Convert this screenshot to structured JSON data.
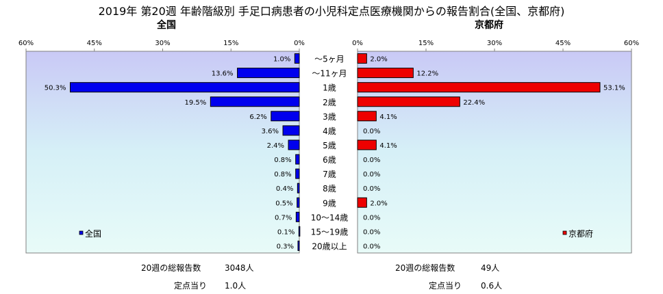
{
  "title": "2019年 第20週 年齢階級別 手足口病患者の小児科定点医療機関からの報告割合(全国、京都府)",
  "chart_data": [
    {
      "type": "bar",
      "orientation": "horizontal",
      "direction": "right-to-left",
      "title": "全国",
      "color": "#0000ee",
      "xlim": [
        0,
        60
      ],
      "ticks": [
        "60%",
        "45%",
        "30%",
        "15%",
        "0%"
      ],
      "tick_values": [
        60,
        45,
        30,
        15,
        0
      ],
      "series": [
        {
          "name": "全国",
          "values": [
            1.0,
            13.6,
            50.3,
            19.5,
            6.2,
            3.6,
            2.4,
            0.8,
            0.8,
            0.4,
            0.5,
            0.7,
            0.1,
            0.3
          ],
          "labels": [
            "1.0%",
            "13.6%",
            "50.3%",
            "19.5%",
            "6.2%",
            "3.6%",
            "2.4%",
            "0.8%",
            "0.8%",
            "0.4%",
            "0.5%",
            "0.7%",
            "0.1%",
            "0.3%"
          ]
        }
      ],
      "legend_position": "bottom-left"
    },
    {
      "type": "bar",
      "orientation": "horizontal",
      "direction": "left-to-right",
      "title": "京都府",
      "color": "#ee0000",
      "xlim": [
        0,
        60
      ],
      "ticks": [
        "0%",
        "15%",
        "30%",
        "45%",
        "60%"
      ],
      "tick_values": [
        0,
        15,
        30,
        45,
        60
      ],
      "series": [
        {
          "name": "京都府",
          "values": [
            2.0,
            12.2,
            53.1,
            22.4,
            4.1,
            0.0,
            4.1,
            0.0,
            0.0,
            0.0,
            2.0,
            0.0,
            0.0,
            0.0
          ],
          "labels": [
            "2.0%",
            "12.2%",
            "53.1%",
            "22.4%",
            "4.1%",
            "0.0%",
            "4.1%",
            "0.0%",
            "0.0%",
            "0.0%",
            "2.0%",
            "0.0%",
            "0.0%",
            "0.0%"
          ]
        }
      ],
      "legend_position": "bottom-right"
    }
  ],
  "categories": [
    "～5ヶ月",
    "～11ヶ月",
    "1歳",
    "2歳",
    "3歳",
    "4歳",
    "5歳",
    "6歳",
    "7歳",
    "8歳",
    "9歳",
    "10～14歳",
    "15～19歳",
    "20歳以上"
  ],
  "footer": {
    "national_total_label": "20週の総報告数",
    "national_total_value": "3048人",
    "national_per_label": "定点当り",
    "national_per_value": "1.0人",
    "kyoto_total_label": "20週の総報告数",
    "kyoto_total_value": "49人",
    "kyoto_per_label": "定点当り",
    "kyoto_per_value": "0.6人"
  }
}
